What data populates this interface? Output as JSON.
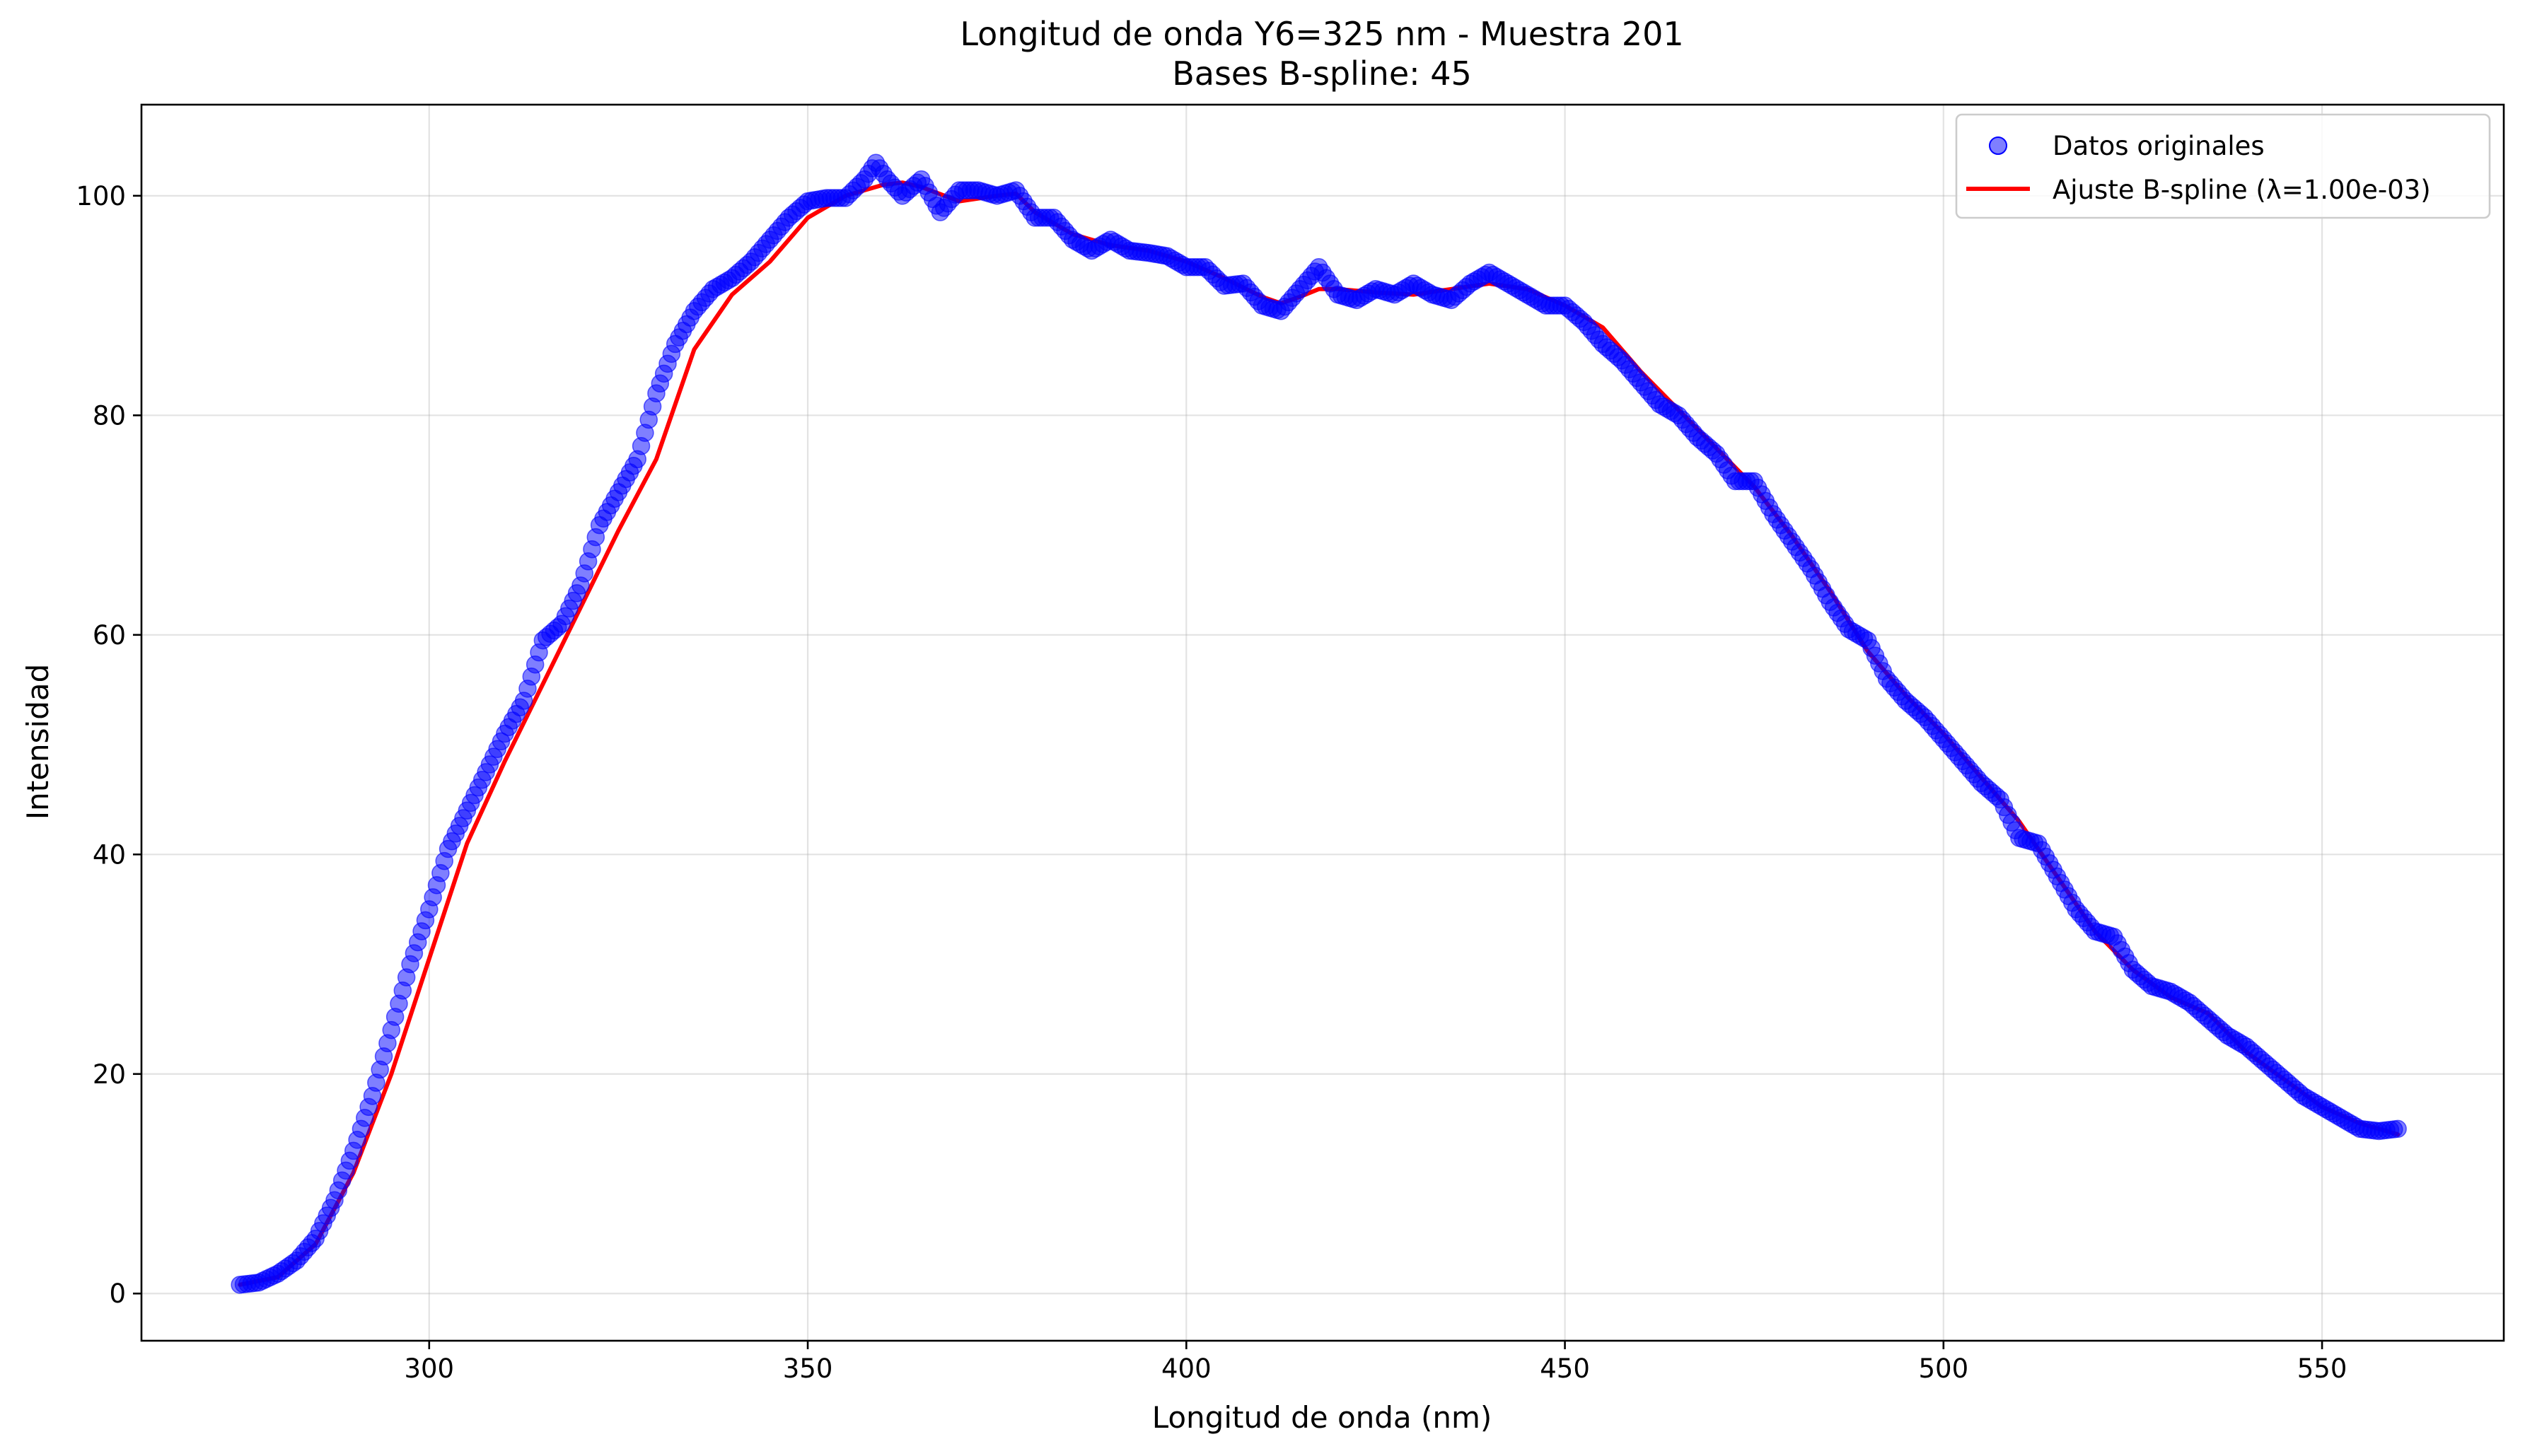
{
  "chart_data": {
    "type": "scatter",
    "title": "Longitud de onda Y6=325 nm - Muestra 201",
    "subtitle": "Bases B-spline: 45",
    "xlabel": "Longitud de onda (nm)",
    "ylabel": "Intensidad",
    "xlim": [
      262,
      574
    ],
    "ylim": [
      -4.3,
      108.3
    ],
    "xticks": [
      300,
      350,
      400,
      450,
      500,
      550
    ],
    "yticks": [
      0,
      20,
      40,
      60,
      80,
      100
    ],
    "grid": true,
    "legend_position": "top-right",
    "colors": {
      "scatter": "#0000ff",
      "fit": "#ff0000"
    },
    "series": [
      {
        "name": "Datos originales",
        "kind": "scatter",
        "x": [
          275,
          277.5,
          280,
          282.5,
          285,
          287.5,
          290,
          292.5,
          295,
          297.5,
          300,
          302.5,
          305,
          307.5,
          310,
          312.5,
          315,
          317.5,
          320,
          322.5,
          325,
          327.5,
          330,
          332.5,
          335,
          337.5,
          340,
          342.5,
          345,
          347.5,
          350,
          352.5,
          355,
          357.5,
          359,
          360.5,
          362.5,
          365,
          367.5,
          370,
          372.5,
          375,
          377.5,
          380,
          382.5,
          385,
          387.5,
          390,
          392.5,
          395,
          397.5,
          400,
          402.5,
          405,
          407.5,
          410,
          412.5,
          415,
          417.5,
          420,
          422.5,
          425,
          427.5,
          430,
          432.5,
          435,
          437.5,
          440,
          442.5,
          445,
          447.5,
          450,
          452.5,
          455,
          457.5,
          460,
          462.5,
          465,
          467.5,
          470,
          472.5,
          475,
          477.5,
          480,
          482.5,
          485,
          487.5,
          490,
          492.5,
          495,
          497.5,
          500,
          502.5,
          505,
          507.5,
          510,
          512.5,
          515,
          517.5,
          520,
          522.5,
          525,
          527.5,
          530,
          532.5,
          535,
          537.5,
          540,
          542.5,
          545,
          547.5,
          550,
          552.5,
          555,
          557.5,
          560
        ],
        "y": [
          0.8,
          1.0,
          1.8,
          3.0,
          5.0,
          8.5,
          13.0,
          18.0,
          24.0,
          30.0,
          35.0,
          40.5,
          44.0,
          47.5,
          51.0,
          54.0,
          59.5,
          61.0,
          64.5,
          70.0,
          73.0,
          76.0,
          82.0,
          86.5,
          89.5,
          91.5,
          92.5,
          94.0,
          96.0,
          98.0,
          99.5,
          99.8,
          99.8,
          101.5,
          103.0,
          101.5,
          100.0,
          101.5,
          98.5,
          100.5,
          100.5,
          100.0,
          100.5,
          98.0,
          98.0,
          96.0,
          95.0,
          96.0,
          95.0,
          94.8,
          94.5,
          93.5,
          93.5,
          91.8,
          92.0,
          90.0,
          89.5,
          91.5,
          93.5,
          91.0,
          90.5,
          91.5,
          91.0,
          92.0,
          91.0,
          90.5,
          92.0,
          93.0,
          92.0,
          91.0,
          90.0,
          90.0,
          88.5,
          86.5,
          85.0,
          83.0,
          81.0,
          80.0,
          78.0,
          76.5,
          74.0,
          74.0,
          71.0,
          68.5,
          66.0,
          63.0,
          60.5,
          59.5,
          56.0,
          54.0,
          52.5,
          50.5,
          48.5,
          46.5,
          45.0,
          41.5,
          41.0,
          38.0,
          35.0,
          33.0,
          32.5,
          29.5,
          28.0,
          27.5,
          26.5,
          25.0,
          23.5,
          22.5,
          21.0,
          19.5,
          18.0,
          17.0,
          16.0,
          15.0,
          14.8,
          15.0
        ]
      },
      {
        "name": "Ajuste B-spline (λ=1.00e-03)",
        "kind": "line",
        "x": [
          275,
          280,
          285,
          290,
          295,
          300,
          305,
          310,
          315,
          320,
          325,
          330,
          335,
          340,
          345,
          350,
          355,
          360,
          362.5,
          365,
          370,
          375,
          377.5,
          380,
          385,
          390,
          395,
          400,
          405,
          410,
          412.5,
          415,
          417.5,
          420,
          425,
          430,
          435,
          440,
          445,
          450,
          455,
          460,
          465,
          470,
          475,
          480,
          485,
          490,
          495,
          500,
          505,
          510,
          515,
          520,
          525,
          530,
          535,
          540,
          545,
          550,
          555,
          560
        ],
        "y": [
          0.8,
          1.5,
          4.5,
          11.0,
          20.0,
          30.5,
          41.0,
          48.5,
          55.5,
          62.5,
          69.5,
          76.0,
          86.0,
          91.0,
          94.0,
          98.0,
          100.0,
          101.0,
          101.2,
          100.8,
          99.5,
          100.0,
          100.2,
          98.5,
          96.5,
          95.5,
          95.0,
          94.0,
          92.5,
          90.8,
          90.2,
          90.8,
          91.5,
          91.5,
          91.2,
          91.0,
          91.5,
          92.0,
          91.5,
          90.0,
          88.0,
          84.0,
          80.5,
          77.0,
          73.5,
          69.0,
          64.0,
          58.5,
          54.5,
          51.0,
          47.0,
          43.0,
          38.0,
          33.0,
          29.5,
          27.0,
          25.5,
          22.0,
          19.5,
          17.0,
          15.5,
          14.5
        ]
      }
    ]
  }
}
